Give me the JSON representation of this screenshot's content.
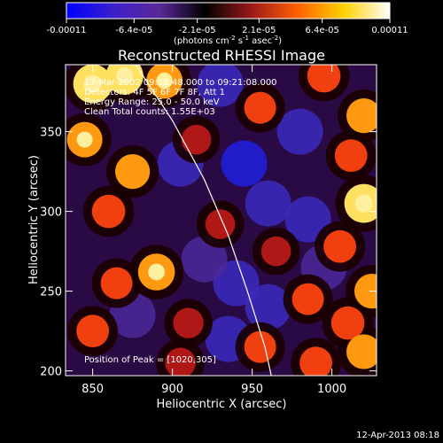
{
  "chart_data": {
    "type": "heatmap",
    "title": "Reconstructed RHESSI Image",
    "xlabel": "Heliocentric X (arcsec)",
    "ylabel": "Heliocentric Y (arcsec)",
    "xlim": [
      833,
      1028
    ],
    "ylim": [
      197,
      392
    ],
    "x_ticks": [
      "850",
      "900",
      "950",
      "1000"
    ],
    "x_tick_values": [
      850,
      900,
      950,
      1000
    ],
    "y_ticks": [
      "200",
      "250",
      "300",
      "350"
    ],
    "y_tick_values": [
      200,
      250,
      300,
      350
    ],
    "colorbar": {
      "tick_labels": [
        "-0.00011",
        "-6.4e-05",
        "-2.1e-05",
        "2.1e-05",
        "6.4e-05",
        "0.00011"
      ],
      "tick_values": [
        -0.00011,
        -6.4e-05,
        -2.1e-05,
        2.1e-05,
        6.4e-05,
        0.00011
      ],
      "range": [
        -0.00011,
        0.00011
      ],
      "colors": [
        "#0000ff",
        "#3b1fcc",
        "#5a2a9a",
        "#000000",
        "#9a1a1a",
        "#ff6000",
        "#ffd000",
        "#ffffff"
      ]
    },
    "annotations": [
      "17-Mar-2002 09:18:48.000 to 09:21:08.000",
      "Detectors: 4F 5F 6F 7F 8F, Att 1",
      "Energy Range: 25.0 - 50.0 keV",
      "Clean     Total counts: 1.55E+03",
      "Position of Peak = [1020,305]"
    ],
    "limb_curve": [
      [
        877,
        392
      ],
      [
        900,
        357
      ],
      [
        920,
        320
      ],
      [
        935,
        285
      ],
      [
        947,
        250
      ],
      [
        958,
        215
      ],
      [
        962,
        197
      ]
    ],
    "hot_spots": [
      {
        "x": 850,
        "y": 380,
        "v": 1.0
      },
      {
        "x": 870,
        "y": 385,
        "v": 0.9
      },
      {
        "x": 895,
        "y": 382,
        "v": 0.8
      },
      {
        "x": 845,
        "y": 345,
        "v": 0.75
      },
      {
        "x": 875,
        "y": 325,
        "v": 0.7
      },
      {
        "x": 860,
        "y": 300,
        "v": 0.6
      },
      {
        "x": 890,
        "y": 262,
        "v": 0.85
      },
      {
        "x": 865,
        "y": 255,
        "v": 0.5
      },
      {
        "x": 850,
        "y": 225,
        "v": 0.55
      },
      {
        "x": 915,
        "y": 345,
        "v": 0.35
      },
      {
        "x": 955,
        "y": 365,
        "v": 0.5
      },
      {
        "x": 995,
        "y": 385,
        "v": 0.6
      },
      {
        "x": 1020,
        "y": 360,
        "v": 0.7
      },
      {
        "x": 1012,
        "y": 335,
        "v": 0.55
      },
      {
        "x": 1020,
        "y": 305,
        "v": 1.0
      },
      {
        "x": 1005,
        "y": 278,
        "v": 0.55
      },
      {
        "x": 1025,
        "y": 250,
        "v": 0.7
      },
      {
        "x": 1010,
        "y": 230,
        "v": 0.6
      },
      {
        "x": 985,
        "y": 245,
        "v": 0.5
      },
      {
        "x": 965,
        "y": 275,
        "v": 0.35
      },
      {
        "x": 930,
        "y": 292,
        "v": 0.35
      },
      {
        "x": 910,
        "y": 230,
        "v": 0.4
      },
      {
        "x": 955,
        "y": 215,
        "v": 0.5
      },
      {
        "x": 905,
        "y": 205,
        "v": 0.4
      },
      {
        "x": 990,
        "y": 205,
        "v": 0.55
      },
      {
        "x": 1020,
        "y": 212,
        "v": 0.7
      }
    ],
    "cold_spots": [
      {
        "x": 930,
        "y": 380,
        "v": -0.6
      },
      {
        "x": 905,
        "y": 330,
        "v": -0.5
      },
      {
        "x": 945,
        "y": 330,
        "v": -0.7
      },
      {
        "x": 980,
        "y": 350,
        "v": -0.5
      },
      {
        "x": 960,
        "y": 305,
        "v": -0.6
      },
      {
        "x": 985,
        "y": 295,
        "v": -0.5
      },
      {
        "x": 940,
        "y": 255,
        "v": -0.6
      },
      {
        "x": 920,
        "y": 270,
        "v": -0.45
      },
      {
        "x": 995,
        "y": 265,
        "v": -0.4
      },
      {
        "x": 960,
        "y": 240,
        "v": -0.5
      },
      {
        "x": 875,
        "y": 235,
        "v": -0.35
      },
      {
        "x": 935,
        "y": 220,
        "v": -0.5
      }
    ]
  },
  "footer": {
    "date_stamp": "12-Apr-2013 08:18"
  }
}
